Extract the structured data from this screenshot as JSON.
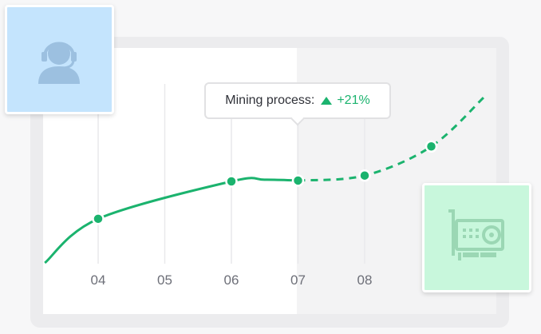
{
  "tooltip": {
    "label": "Mining process:",
    "change": "+21%",
    "trend": "up"
  },
  "colors": {
    "accent": "#1bb36e",
    "avatar_card_bg": "#c4e4fd",
    "hardware_card_bg": "#c8f7dc",
    "future_region_bg": "#f3f3f4"
  },
  "icons": {
    "avatar": "headset-user-icon",
    "hardware": "graphics-card-icon"
  },
  "chart_data": {
    "type": "line",
    "categories": [
      "04",
      "05",
      "06",
      "07",
      "08"
    ],
    "solid_until": "07",
    "series": [
      {
        "x": [
          3.2,
          4,
          6,
          6.5,
          7,
          8,
          9,
          9.8
        ],
        "y": [
          0,
          53,
          98,
          100,
          99,
          105,
          140,
          200
        ],
        "markers": [
          4,
          6,
          7,
          8,
          9
        ]
      }
    ],
    "ylim": [
      0,
      220
    ],
    "grid": "vertical"
  }
}
